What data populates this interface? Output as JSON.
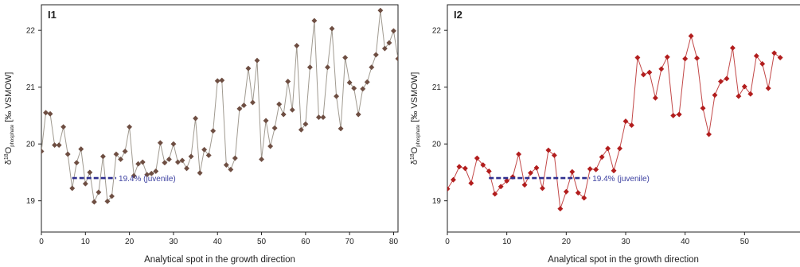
{
  "colors": {
    "panel1_line": "#a09a90",
    "panel1_marker": "#6e4e42",
    "panel2_line": "#c24848",
    "panel2_marker": "#b21d1d",
    "reference_line": "#2f2f8f",
    "reference_text": "#3b3fa0",
    "frame": "#222222",
    "text": "#222222"
  },
  "chart_data": [
    {
      "type": "line",
      "panel_label": "I1",
      "xlabel": "Analytical spot in the growth direction",
      "ylabel_prefix": "δ",
      "ylabel_sup": "18",
      "ylabel_o": "O",
      "ylabel_sub": "phosphate",
      "ylabel_suffix": " [‰ VSMOW]",
      "xlim": [
        0,
        81
      ],
      "ylim": [
        18.45,
        22.45
      ],
      "xticks": [
        0,
        10,
        20,
        30,
        40,
        50,
        60,
        70,
        80
      ],
      "yticks": [
        19,
        20,
        21,
        22
      ],
      "grid": false,
      "reference": {
        "y": 19.4,
        "x_start": 7,
        "x_end": 17,
        "label": "19.4% (juvenile)"
      },
      "x": [
        0,
        1,
        2,
        3,
        4,
        5,
        6,
        7,
        8,
        9,
        10,
        11,
        12,
        13,
        14,
        15,
        16,
        17,
        18,
        19,
        20,
        21,
        22,
        23,
        24,
        25,
        26,
        27,
        28,
        29,
        30,
        31,
        32,
        33,
        34,
        35,
        36,
        37,
        38,
        39,
        40,
        41,
        42,
        43,
        44,
        45,
        46,
        47,
        48,
        49,
        50,
        51,
        52,
        53,
        54,
        55,
        56,
        57,
        58,
        59,
        60,
        61,
        62,
        63,
        64,
        65,
        66,
        67,
        68,
        69,
        70,
        71,
        72,
        73,
        74,
        75,
        76,
        77,
        78,
        79,
        80,
        81
      ],
      "values": [
        19.87,
        20.55,
        20.53,
        19.98,
        19.98,
        20.3,
        19.82,
        19.22,
        19.67,
        19.91,
        19.3,
        19.5,
        18.98,
        19.15,
        19.78,
        18.99,
        19.08,
        19.82,
        19.73,
        19.87,
        20.3,
        19.44,
        19.65,
        19.68,
        19.46,
        19.48,
        19.52,
        20.02,
        19.67,
        19.73,
        20.0,
        19.68,
        19.71,
        19.57,
        19.78,
        20.45,
        19.49,
        19.9,
        19.8,
        20.23,
        21.11,
        21.12,
        19.63,
        19.55,
        19.75,
        20.62,
        20.68,
        21.33,
        20.73,
        21.47,
        19.73,
        20.41,
        19.96,
        20.28,
        20.7,
        20.52,
        21.1,
        20.6,
        21.73,
        20.25,
        20.35,
        21.35,
        22.17,
        20.47,
        20.47,
        21.35,
        22.03,
        20.84,
        20.27,
        21.52,
        21.08,
        20.98,
        20.52,
        20.97,
        21.09,
        21.35,
        21.57,
        22.35,
        21.68,
        21.78,
        21.99,
        21.5
      ]
    },
    {
      "type": "line",
      "panel_label": "I2",
      "xlabel": "Analytical spot in the growth direction",
      "ylabel_prefix": "δ",
      "ylabel_sup": "18",
      "ylabel_o": "O",
      "ylabel_sub": "phosphate",
      "ylabel_suffix": " [‰ VSMOW]",
      "xlim": [
        0,
        60
      ],
      "ylim": [
        18.45,
        22.45
      ],
      "xticks": [
        0,
        10,
        20,
        30,
        40,
        50
      ],
      "yticks": [
        19,
        20,
        21,
        22
      ],
      "grid": false,
      "reference": {
        "y": 19.4,
        "x_start": 7,
        "x_end": 24,
        "label": "19.4% (juvenile)"
      },
      "x": [
        0,
        1,
        2,
        3,
        4,
        5,
        6,
        7,
        8,
        9,
        10,
        11,
        12,
        13,
        14,
        15,
        16,
        17,
        18,
        19,
        20,
        21,
        22,
        23,
        24,
        25,
        26,
        27,
        28,
        29,
        30,
        31,
        32,
        33,
        34,
        35,
        36,
        37,
        38,
        39,
        40,
        41,
        42,
        43,
        44,
        45,
        46,
        47,
        48,
        49,
        50,
        51,
        52,
        53,
        54,
        55,
        56
      ],
      "values": [
        19.21,
        19.37,
        19.6,
        19.57,
        19.31,
        19.75,
        19.63,
        19.52,
        19.12,
        19.25,
        19.35,
        19.42,
        19.82,
        19.28,
        19.49,
        19.58,
        19.22,
        19.89,
        19.8,
        18.86,
        19.16,
        19.51,
        19.14,
        19.05,
        19.56,
        19.55,
        19.77,
        19.92,
        19.53,
        19.92,
        20.4,
        20.33,
        21.52,
        21.22,
        21.26,
        20.81,
        21.32,
        21.53,
        20.5,
        20.52,
        21.5,
        21.9,
        21.51,
        20.63,
        20.17,
        20.86,
        21.1,
        21.15,
        21.69,
        20.84,
        21.01,
        20.88,
        21.55,
        21.41,
        20.98,
        21.6,
        21.52
      ]
    }
  ]
}
